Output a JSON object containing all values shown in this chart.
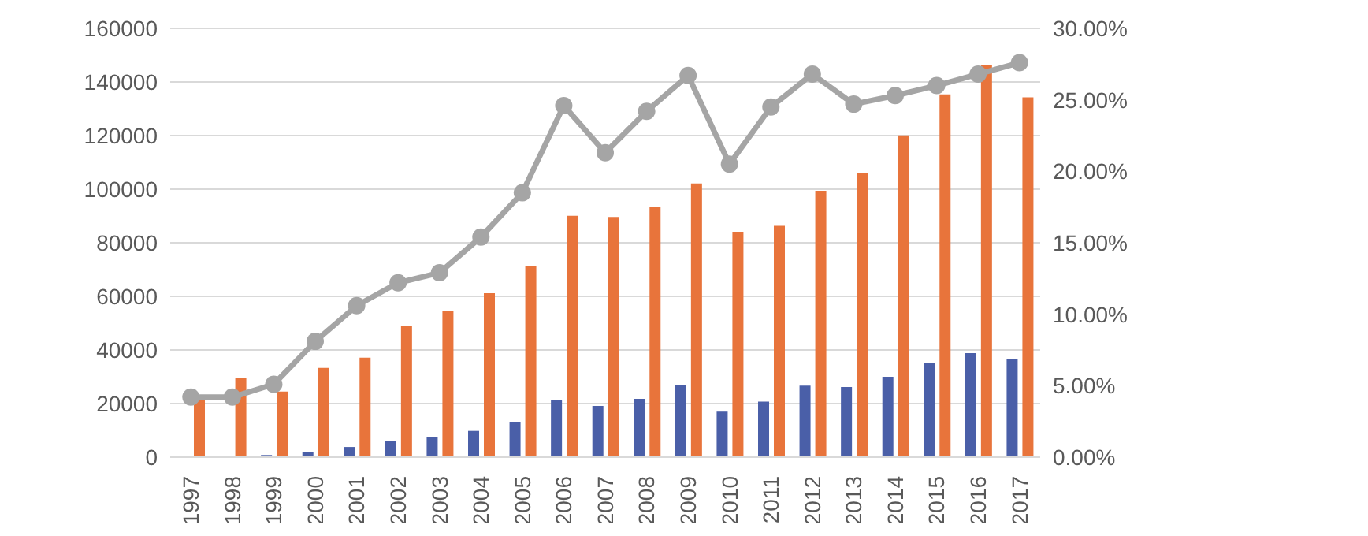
{
  "chart_data": {
    "type": "bar",
    "categories": [
      "1997",
      "1998",
      "1999",
      "2000",
      "2001",
      "2002",
      "2003",
      "2004",
      "2005",
      "2006",
      "2007",
      "2008",
      "2009",
      "2010",
      "2011",
      "2012",
      "2013",
      "2014",
      "2015",
      "2016",
      "2017"
    ],
    "series": [
      {
        "color": "#4a5fa8",
        "values": [
          null,
          500,
          800,
          2000,
          3800,
          6000,
          7600,
          9800,
          13100,
          21300,
          19100,
          21800,
          26800,
          17000,
          20700,
          26700,
          26200,
          30000,
          35000,
          38800,
          36600
        ]
      },
      {
        "color": "#e8743b",
        "values": [
          22400,
          29500,
          24500,
          33300,
          37100,
          49100,
          54600,
          61200,
          71500,
          90100,
          89600,
          93400,
          102100,
          84100,
          86300,
          99400,
          106000,
          120100,
          135400,
          146300,
          134300
        ]
      },
      {
        "type": "line",
        "axis": "y2",
        "color": "#a5a5a5",
        "marker": "circle",
        "values": [
          4.2,
          4.2,
          5.1,
          8.1,
          10.6,
          12.2,
          12.9,
          15.4,
          18.5,
          24.6,
          21.3,
          24.2,
          26.7,
          20.5,
          24.5,
          26.8,
          24.7,
          25.3,
          26.0,
          26.8,
          27.6
        ]
      }
    ],
    "ylim": [
      0,
      160000
    ],
    "yticks": [
      0,
      20000,
      40000,
      60000,
      80000,
      100000,
      120000,
      140000,
      160000
    ],
    "y2lim": [
      0,
      30
    ],
    "y2ticks": [
      {
        "value": 0,
        "label": "0.00%"
      },
      {
        "value": 5,
        "label": "5.00%"
      },
      {
        "value": 10,
        "label": "10.00%"
      },
      {
        "value": 15,
        "label": "15.00%"
      },
      {
        "value": 20,
        "label": "20.00%"
      },
      {
        "value": 25,
        "label": "25.00%"
      },
      {
        "value": 30,
        "label": "30.00%"
      }
    ],
    "grid": "y"
  }
}
